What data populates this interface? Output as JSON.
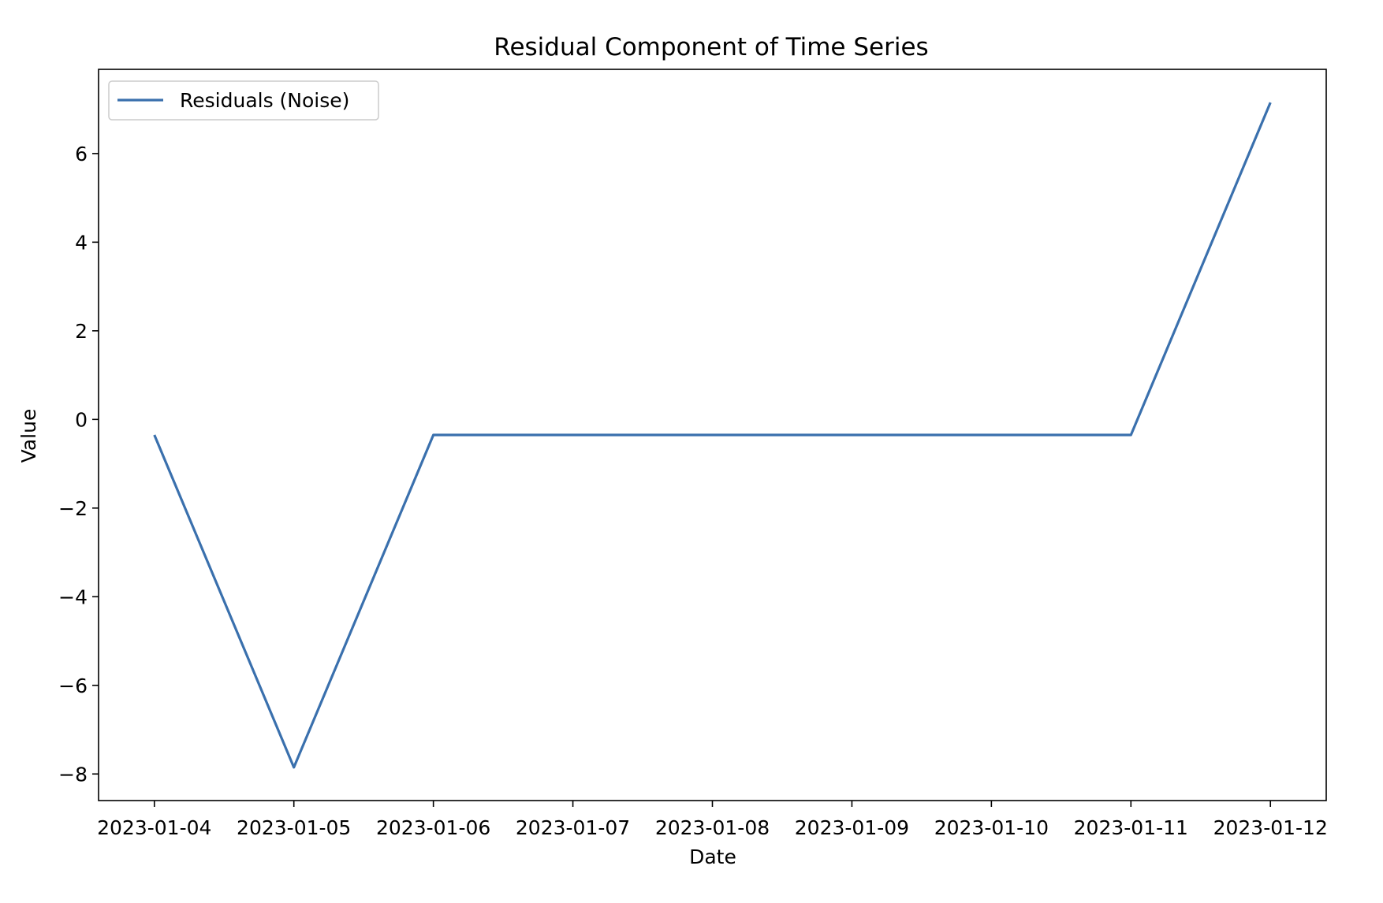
{
  "chart_data": {
    "type": "line",
    "title": "Residual Component of Time Series",
    "xlabel": "Date",
    "ylabel": "Value",
    "x": [
      "2023-01-04",
      "2023-01-05",
      "2023-01-06",
      "2023-01-07",
      "2023-01-08",
      "2023-01-09",
      "2023-01-10",
      "2023-01-11",
      "2023-01-12"
    ],
    "series": [
      {
        "name": "Residuals (Noise)",
        "color": "#3a70ad",
        "values": [
          -0.35,
          -7.85,
          -0.35,
          -0.35,
          -0.35,
          -0.35,
          -0.35,
          -0.35,
          7.15
        ]
      }
    ],
    "xlim": [
      "2023-01-03",
      "2023-01-12"
    ],
    "ylim": [
      -8.6,
      7.9
    ],
    "yticks": [
      -8,
      -6,
      -4,
      -2,
      0,
      2,
      4,
      6
    ],
    "ytick_labels": [
      "−8",
      "−6",
      "−4",
      "−2",
      "0",
      "2",
      "4",
      "6"
    ],
    "xtick_labels": [
      "2023-01-04",
      "2023-01-05",
      "2023-01-06",
      "2023-01-07",
      "2023-01-08",
      "2023-01-09",
      "2023-01-10",
      "2023-01-11",
      "2023-01-12"
    ],
    "grid": false,
    "legend_position": "top-left"
  }
}
